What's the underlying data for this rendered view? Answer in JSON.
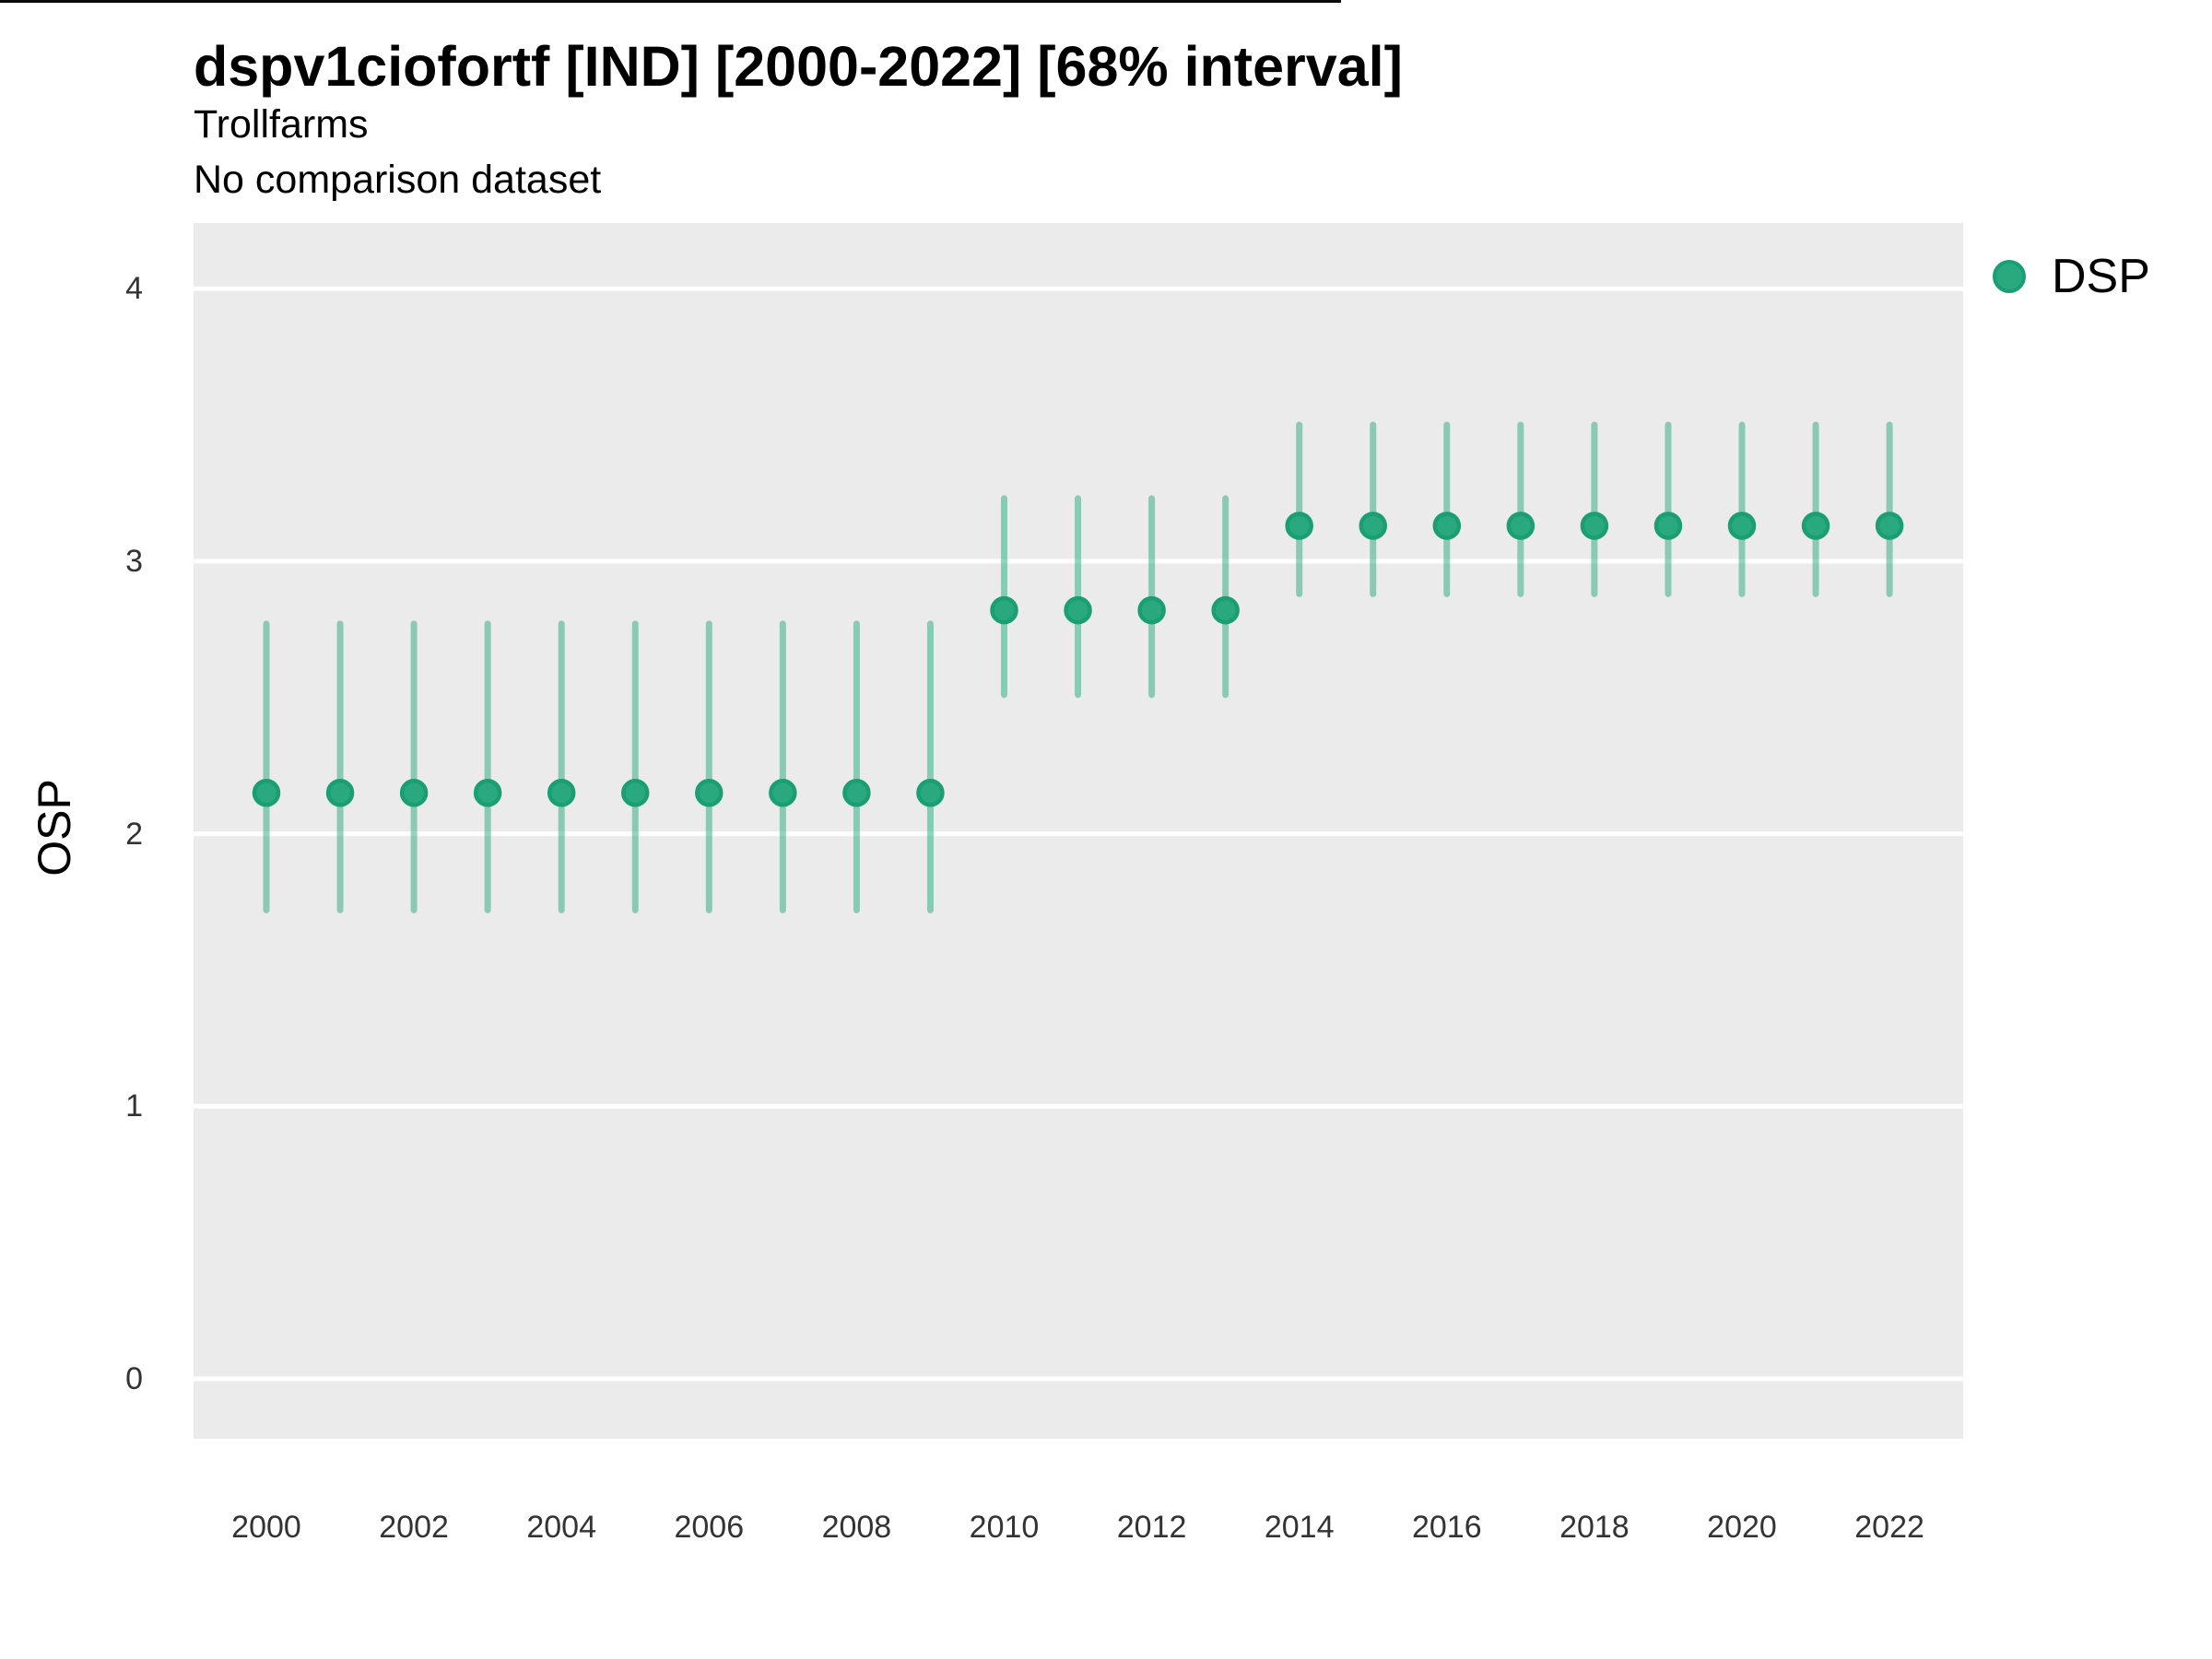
{
  "chart_data": {
    "type": "pointrange",
    "title": "dspv1ciofortf [IND] [2000-2022] [68% interval]",
    "subtitle": "Trollfarms",
    "note": "No comparison dataset",
    "ylabel": "OSP",
    "xlabel": "",
    "interval_level": "68%",
    "legend": {
      "position": "right-top",
      "entries": [
        {
          "label": "DSP",
          "color": "#2aa87e"
        }
      ]
    },
    "panel_bg": "#ebebeb",
    "grid_color": "#ffffff",
    "grid": "major-horizontal-only",
    "point_color": "#2aa87e",
    "point_stroke_color": "#1a9e74",
    "interval_color": "rgba(42,168,126,0.5)",
    "ydomain": [
      -0.22,
      4.24
    ],
    "xdomain": [
      1999,
      2023
    ],
    "yticks": [
      0,
      1,
      2,
      3,
      4
    ],
    "xticks": [
      2000,
      2002,
      2004,
      2006,
      2008,
      2010,
      2012,
      2014,
      2016,
      2018,
      2020,
      2022
    ],
    "series": [
      {
        "name": "DSP",
        "points": [
          {
            "x": 2000,
            "y": 2.15,
            "lo": 1.72,
            "hi": 2.77
          },
          {
            "x": 2001,
            "y": 2.15,
            "lo": 1.72,
            "hi": 2.77
          },
          {
            "x": 2002,
            "y": 2.15,
            "lo": 1.72,
            "hi": 2.77
          },
          {
            "x": 2003,
            "y": 2.15,
            "lo": 1.72,
            "hi": 2.77
          },
          {
            "x": 2004,
            "y": 2.15,
            "lo": 1.72,
            "hi": 2.77
          },
          {
            "x": 2005,
            "y": 2.15,
            "lo": 1.72,
            "hi": 2.77
          },
          {
            "x": 2006,
            "y": 2.15,
            "lo": 1.72,
            "hi": 2.77
          },
          {
            "x": 2007,
            "y": 2.15,
            "lo": 1.72,
            "hi": 2.77
          },
          {
            "x": 2008,
            "y": 2.15,
            "lo": 1.72,
            "hi": 2.77
          },
          {
            "x": 2009,
            "y": 2.15,
            "lo": 1.72,
            "hi": 2.77
          },
          {
            "x": 2010,
            "y": 2.82,
            "lo": 2.51,
            "hi": 3.23
          },
          {
            "x": 2011,
            "y": 2.82,
            "lo": 2.51,
            "hi": 3.23
          },
          {
            "x": 2012,
            "y": 2.82,
            "lo": 2.51,
            "hi": 3.23
          },
          {
            "x": 2013,
            "y": 2.82,
            "lo": 2.51,
            "hi": 3.23
          },
          {
            "x": 2014,
            "y": 3.13,
            "lo": 2.88,
            "hi": 3.5
          },
          {
            "x": 2015,
            "y": 3.13,
            "lo": 2.88,
            "hi": 3.5
          },
          {
            "x": 2016,
            "y": 3.13,
            "lo": 2.88,
            "hi": 3.5
          },
          {
            "x": 2017,
            "y": 3.13,
            "lo": 2.88,
            "hi": 3.5
          },
          {
            "x": 2018,
            "y": 3.13,
            "lo": 2.88,
            "hi": 3.5
          },
          {
            "x": 2019,
            "y": 3.13,
            "lo": 2.88,
            "hi": 3.5
          },
          {
            "x": 2020,
            "y": 3.13,
            "lo": 2.88,
            "hi": 3.5
          },
          {
            "x": 2021,
            "y": 3.13,
            "lo": 2.88,
            "hi": 3.5
          },
          {
            "x": 2022,
            "y": 3.13,
            "lo": 2.88,
            "hi": 3.5
          }
        ]
      }
    ]
  }
}
